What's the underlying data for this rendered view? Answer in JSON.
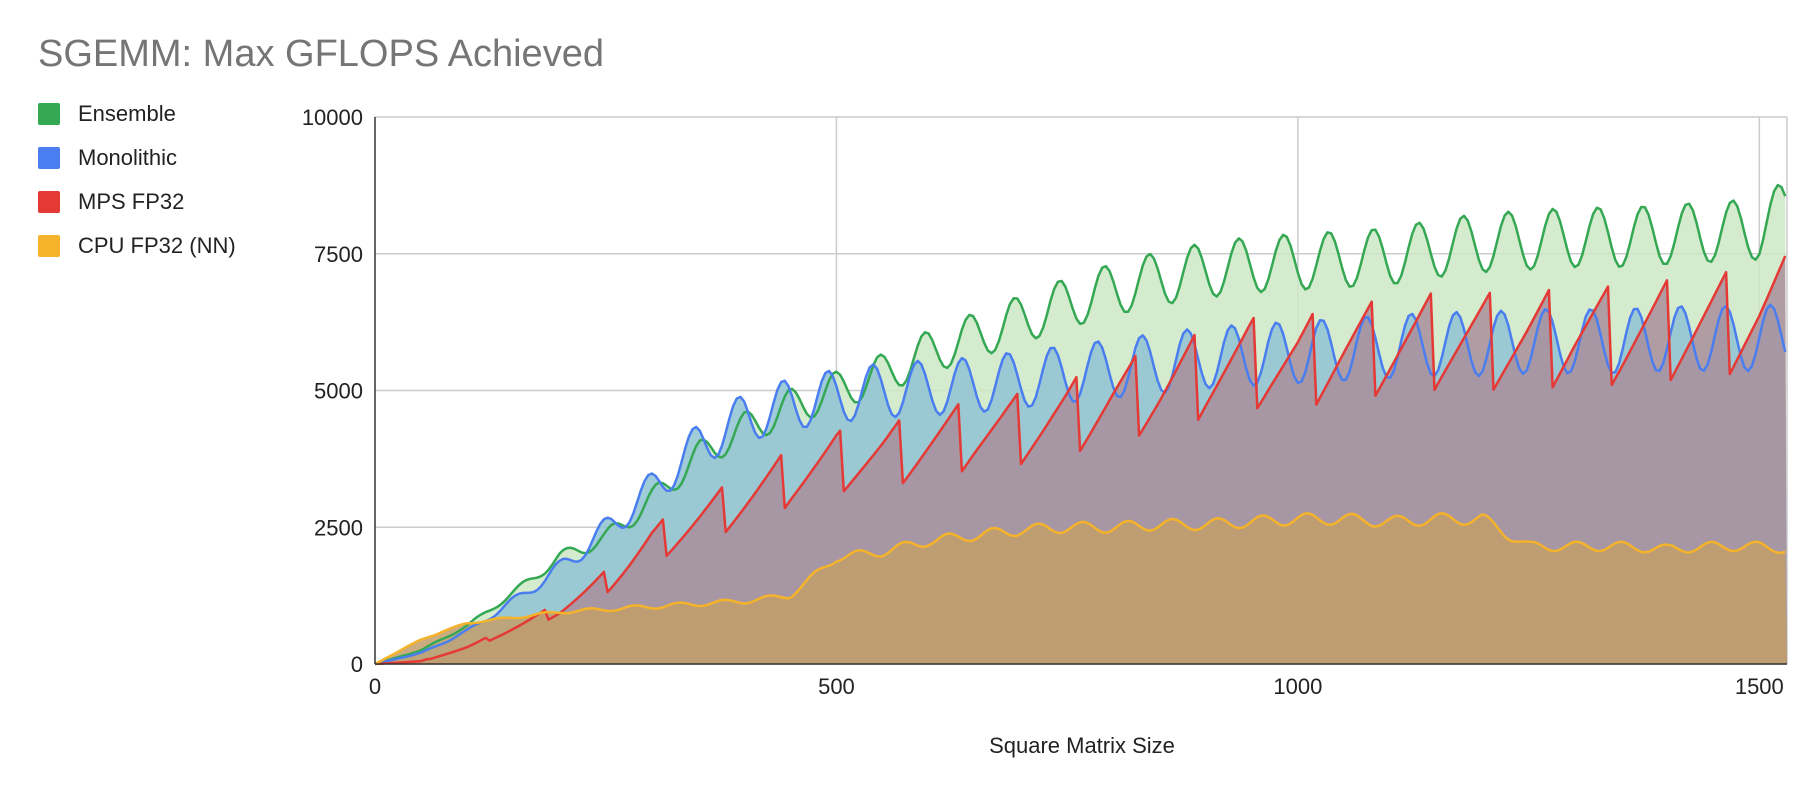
{
  "chart_data": {
    "type": "area",
    "title": "SGEMM: Max GFLOPS Achieved",
    "xlabel": "Square Matrix Size",
    "ylabel": "",
    "xlim": [
      0,
      1530
    ],
    "ylim": [
      0,
      10000
    ],
    "x_ticks": [
      "0",
      "500",
      "1000",
      "1500"
    ],
    "y_ticks": [
      "0",
      "2500",
      "5000",
      "7500",
      "10000"
    ],
    "grid": true,
    "legend_position": "left",
    "x": [
      0,
      50,
      100,
      150,
      200,
      250,
      300,
      350,
      400,
      450,
      500,
      550,
      600,
      650,
      700,
      750,
      800,
      850,
      900,
      950,
      1000,
      1050,
      1100,
      1150,
      1200,
      1250,
      1300,
      1350,
      1400,
      1450,
      1500,
      1530
    ],
    "series": [
      {
        "name": "Ensemble",
        "color": "#34a853",
        "fill": "#cde8c6",
        "values": [
          0,
          250,
          700,
          1300,
          1950,
          2300,
          3000,
          3800,
          4300,
          4700,
          5000,
          5300,
          5700,
          6000,
          6300,
          6600,
          6850,
          7050,
          7200,
          7300,
          7350,
          7400,
          7450,
          7600,
          7700,
          7750,
          7800,
          7800,
          7850,
          7900,
          7950,
          8300
        ]
      },
      {
        "name": "Monolithic",
        "color": "#4a7ef0",
        "fill": "#8fc3d3",
        "values": [
          0,
          200,
          600,
          1150,
          1750,
          2450,
          3200,
          4000,
          4500,
          4750,
          4900,
          5000,
          5050,
          5100,
          5200,
          5300,
          5400,
          5500,
          5600,
          5650,
          5700,
          5750,
          5800,
          5850,
          5850,
          5900,
          5900,
          5900,
          5950,
          5950,
          5950,
          6000
        ]
      },
      {
        "name": "MPS FP32",
        "color": "#e53935",
        "fill": "#a98e9b",
        "values": [
          0,
          50,
          300,
          650,
          1000,
          1500,
          2200,
          2600,
          3000,
          3400,
          3700,
          3800,
          4000,
          4200,
          4300,
          4500,
          4800,
          5000,
          5300,
          5500,
          5500,
          5700,
          5800,
          5900,
          5900,
          5900,
          6000,
          6000,
          6100,
          6200,
          6300,
          6500
        ]
      },
      {
        "name": "CPU FP32 (NN)",
        "color": "#f4b32a",
        "fill": "#c29e6b",
        "values": [
          0,
          450,
          750,
          850,
          950,
          1000,
          1050,
          1100,
          1150,
          1250,
          1950,
          2050,
          2250,
          2350,
          2450,
          2500,
          2500,
          2550,
          2550,
          2600,
          2650,
          2650,
          2600,
          2650,
          2650,
          2150,
          2150,
          2150,
          2100,
          2150,
          2150,
          2100
        ]
      }
    ]
  }
}
